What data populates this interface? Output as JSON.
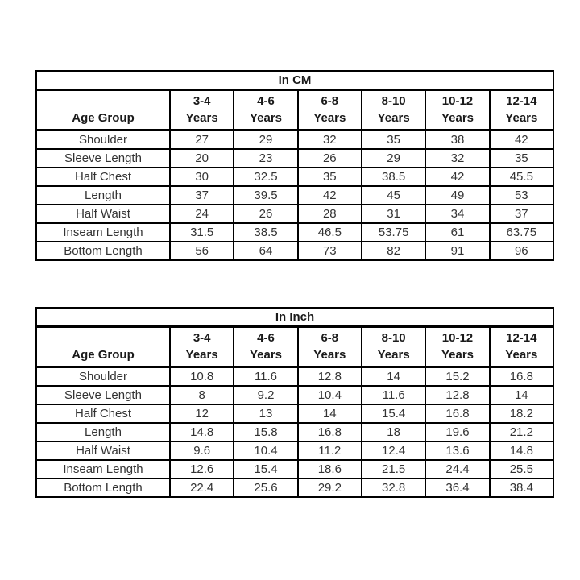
{
  "page": {
    "background": "#ffffff",
    "border_color": "#000000",
    "header_text_color": "#1a1a1a",
    "data_text_color": "#333333"
  },
  "tables": [
    {
      "title": "In CM",
      "corner_header": "Age Group",
      "age_columns": [
        {
          "range": "3-4",
          "unit": "Years"
        },
        {
          "range": "4-6",
          "unit": "Years"
        },
        {
          "range": "6-8",
          "unit": "Years"
        },
        {
          "range": "8-10",
          "unit": "Years"
        },
        {
          "range": "10-12",
          "unit": "Years"
        },
        {
          "range": "12-14",
          "unit": "Years"
        }
      ],
      "rows": [
        {
          "label": "Shoulder",
          "values": [
            "27",
            "29",
            "32",
            "35",
            "38",
            "42"
          ]
        },
        {
          "label": "Sleeve Length",
          "values": [
            "20",
            "23",
            "26",
            "29",
            "32",
            "35"
          ]
        },
        {
          "label": "Half Chest",
          "values": [
            "30",
            "32.5",
            "35",
            "38.5",
            "42",
            "45.5"
          ]
        },
        {
          "label": "Length",
          "values": [
            "37",
            "39.5",
            "42",
            "45",
            "49",
            "53"
          ]
        },
        {
          "label": "Half Waist",
          "values": [
            "24",
            "26",
            "28",
            "31",
            "34",
            "37"
          ]
        },
        {
          "label": "Inseam Length",
          "values": [
            "31.5",
            "38.5",
            "46.5",
            "53.75",
            "61",
            "63.75"
          ]
        },
        {
          "label": "Bottom Length",
          "values": [
            "56",
            "64",
            "73",
            "82",
            "91",
            "96"
          ]
        }
      ]
    },
    {
      "title": "In Inch",
      "corner_header": "Age Group",
      "age_columns": [
        {
          "range": "3-4",
          "unit": "Years"
        },
        {
          "range": "4-6",
          "unit": "Years"
        },
        {
          "range": "6-8",
          "unit": "Years"
        },
        {
          "range": "8-10",
          "unit": "Years"
        },
        {
          "range": "10-12",
          "unit": "Years"
        },
        {
          "range": "12-14",
          "unit": "Years"
        }
      ],
      "rows": [
        {
          "label": "Shoulder",
          "values": [
            "10.8",
            "11.6",
            "12.8",
            "14",
            "15.2",
            "16.8"
          ]
        },
        {
          "label": "Sleeve Length",
          "values": [
            "8",
            "9.2",
            "10.4",
            "11.6",
            "12.8",
            "14"
          ]
        },
        {
          "label": "Half Chest",
          "values": [
            "12",
            "13",
            "14",
            "15.4",
            "16.8",
            "18.2"
          ]
        },
        {
          "label": "Length",
          "values": [
            "14.8",
            "15.8",
            "16.8",
            "18",
            "19.6",
            "21.2"
          ]
        },
        {
          "label": "Half Waist",
          "values": [
            "9.6",
            "10.4",
            "11.2",
            "12.4",
            "13.6",
            "14.8"
          ]
        },
        {
          "label": "Inseam Length",
          "values": [
            "12.6",
            "15.4",
            "18.6",
            "21.5",
            "24.4",
            "25.5"
          ]
        },
        {
          "label": "Bottom Length",
          "values": [
            "22.4",
            "25.6",
            "29.2",
            "32.8",
            "36.4",
            "38.4"
          ]
        }
      ]
    }
  ]
}
